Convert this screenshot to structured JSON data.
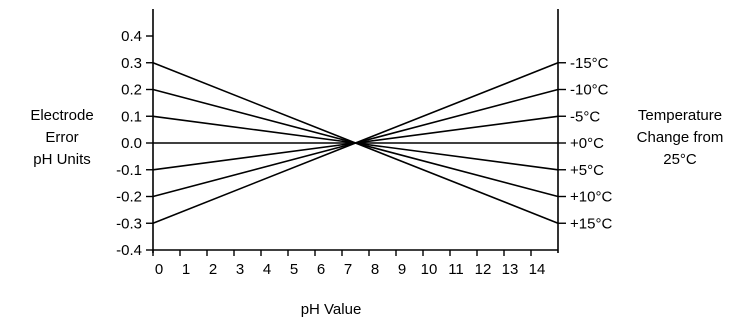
{
  "chart_data": {
    "type": "line",
    "title": "",
    "xlabel": "pH Value",
    "ylabel": [
      "Electrode",
      "Error",
      "pH Units"
    ],
    "right_label": [
      "Temperature",
      "Change from",
      "25°C"
    ],
    "xlim": [
      0,
      15
    ],
    "ylim": [
      -0.4,
      0.4
    ],
    "x_ticks": [
      0,
      1,
      2,
      3,
      4,
      5,
      6,
      7,
      8,
      9,
      10,
      11,
      12,
      13,
      14
    ],
    "x_tick_labels": [
      "0",
      "1",
      "2",
      "3",
      "4",
      "5",
      "6",
      "7",
      "8",
      "9",
      "10",
      "11",
      "12",
      "13",
      "14"
    ],
    "y_ticks": [
      0.4,
      0.3,
      0.2,
      0.1,
      0.0,
      -0.1,
      -0.2,
      -0.3,
      -0.4
    ],
    "y_tick_labels": [
      "0.4",
      "0.3",
      "0.2",
      "0.1",
      "0.0",
      "-0.1",
      "-0.2",
      "-0.3",
      "-0.4"
    ],
    "right_ticks": [
      0.3,
      0.2,
      0.1,
      0.0,
      -0.1,
      -0.2,
      -0.3
    ],
    "right_tick_labels": [
      "-15°C",
      "-10°C",
      "-5°C",
      "+0°C",
      "+5°C",
      "+10°C",
      "+15°C"
    ],
    "grid": false,
    "series": [
      {
        "name": "-15°C",
        "x": [
          0,
          7.5,
          15
        ],
        "y": [
          -0.3,
          0.0,
          0.3
        ]
      },
      {
        "name": "-10°C",
        "x": [
          0,
          7.5,
          15
        ],
        "y": [
          -0.2,
          0.0,
          0.2
        ]
      },
      {
        "name": "-5°C",
        "x": [
          0,
          7.5,
          15
        ],
        "y": [
          -0.1,
          0.0,
          0.1
        ]
      },
      {
        "name": "+0°C",
        "x": [
          0,
          7.5,
          15
        ],
        "y": [
          0.0,
          0.0,
          0.0
        ]
      },
      {
        "name": "+5°C",
        "x": [
          0,
          7.5,
          15
        ],
        "y": [
          0.1,
          0.0,
          -0.1
        ]
      },
      {
        "name": "+10°C",
        "x": [
          0,
          7.5,
          15
        ],
        "y": [
          0.2,
          0.0,
          -0.2
        ]
      },
      {
        "name": "+15°C",
        "x": [
          0,
          7.5,
          15
        ],
        "y": [
          0.3,
          0.0,
          -0.3
        ]
      }
    ],
    "colors": {
      "line": "#000000"
    }
  }
}
